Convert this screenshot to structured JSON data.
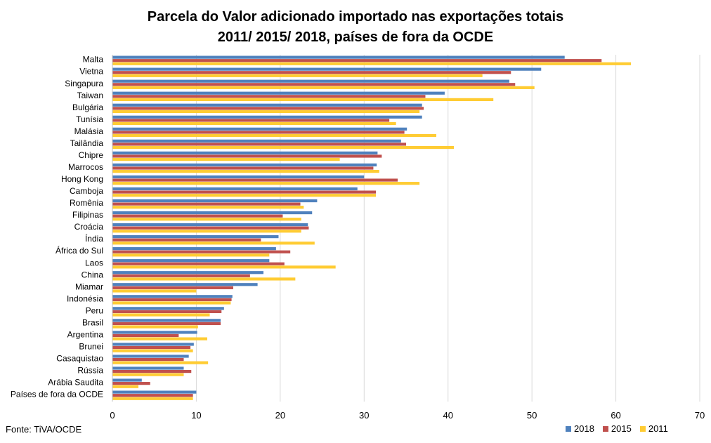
{
  "chart_data": {
    "type": "bar",
    "orientation": "horizontal",
    "title_line1": "Parcela do Valor adicionado importado nas exportações totais",
    "title_line2": "2011/ 2015/ 2018, países de fora da OCDE",
    "xlim": [
      0,
      70
    ],
    "xticks": [
      "0",
      "10",
      "20",
      "30",
      "40",
      "50",
      "60",
      "70"
    ],
    "grid": true,
    "legend_position": "bottom-right",
    "categories": [
      "Malta",
      "Vietna",
      "Singapura",
      "Taiwan",
      "Bulgária",
      "Tunísia",
      "Malásia",
      "Tailândia",
      "Chipre",
      "Marrocos",
      "Hong Kong",
      "Camboja",
      "Romênia",
      "Filipinas",
      "Croácia",
      "Índia",
      "África do Sul",
      "Laos",
      "China",
      "Miamar",
      "Indonésia",
      "Peru",
      "Brasil",
      "Argentina",
      "Brunei",
      "Casaquistao",
      "Rússia",
      "Arábia Saudita",
      "Países de fora da OCDE"
    ],
    "series": [
      {
        "name": "2018",
        "color": "#4F81BD",
        "values": [
          53.9,
          51.1,
          47.3,
          39.6,
          36.9,
          36.9,
          35.1,
          34.4,
          31.6,
          31.5,
          30.0,
          29.2,
          24.4,
          23.8,
          23.3,
          19.8,
          19.5,
          18.7,
          18.0,
          17.3,
          14.3,
          13.3,
          12.9,
          10.1,
          9.7,
          9.1,
          8.5,
          3.5,
          10.0
        ]
      },
      {
        "name": "2015",
        "color": "#C0504D",
        "values": [
          58.3,
          47.5,
          48.0,
          37.3,
          37.1,
          33.0,
          34.8,
          35.0,
          32.1,
          31.1,
          34.0,
          31.4,
          22.4,
          20.3,
          23.4,
          17.7,
          21.2,
          20.5,
          16.4,
          14.4,
          14.2,
          13.0,
          12.9,
          7.9,
          9.3,
          8.5,
          9.4,
          4.5,
          9.6
        ]
      },
      {
        "name": "2011",
        "color": "#FFCC33",
        "values": [
          61.8,
          44.1,
          50.3,
          45.4,
          36.6,
          33.8,
          38.6,
          40.7,
          27.1,
          31.8,
          36.6,
          31.4,
          22.8,
          22.5,
          22.5,
          24.1,
          18.7,
          26.6,
          21.8,
          10.0,
          14.1,
          11.6,
          10.2,
          11.3,
          9.6,
          11.4,
          8.5,
          3.1,
          9.6
        ]
      }
    ]
  },
  "source_note": "Fonte: TiVA/OCDE"
}
